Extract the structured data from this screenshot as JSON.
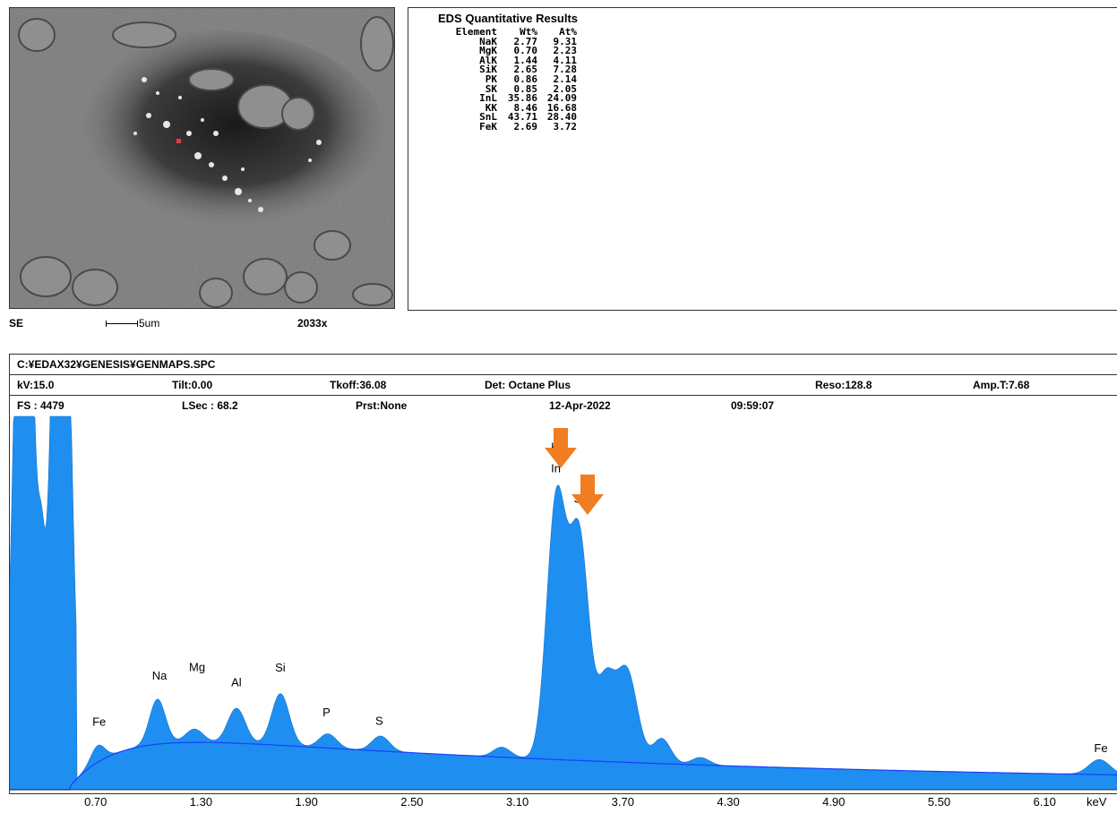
{
  "image_caption": {
    "mode": "SE",
    "scale_label": "5um",
    "magnification": "2033x"
  },
  "results": {
    "title": "EDS Quantitative Results",
    "headers": [
      "Element",
      "Wt%",
      "At%"
    ],
    "rows": [
      [
        "NaK",
        "2.77",
        "9.31"
      ],
      [
        "MgK",
        "0.70",
        "2.23"
      ],
      [
        "AlK",
        "1.44",
        "4.11"
      ],
      [
        "SiK",
        "2.65",
        "7.28"
      ],
      [
        "PK",
        "0.86",
        "2.14"
      ],
      [
        "SK",
        "0.85",
        "2.05"
      ],
      [
        "InL",
        "35.86",
        "24.09"
      ],
      [
        "KK",
        "8.46",
        "16.68"
      ],
      [
        "SnL",
        "43.71",
        "28.40"
      ],
      [
        "FeK",
        "2.69",
        "3.72"
      ]
    ]
  },
  "spectrum_header": {
    "file": "C:¥EDAX32¥GENESIS¥GENMAPS.SPC",
    "kv": "kV:15.0",
    "tilt": "Tilt:0.00",
    "tkoff": "Tkoff:36.08",
    "det": "Det: Octane Plus",
    "reso": "Reso:128.8",
    "amp": "Amp.T:7.68",
    "fs": "FS : 4479",
    "lsec": "LSec : 68.2",
    "prst": "Prst:None",
    "date": "12-Apr-2022",
    "time": "09:59:07"
  },
  "chart_data": {
    "type": "area",
    "xlim": [
      0.2,
      6.5
    ],
    "ylim": [
      0,
      4479
    ],
    "x_ticks": [
      "0.70",
      "1.30",
      "1.90",
      "2.50",
      "3.10",
      "3.70",
      "4.30",
      "4.90",
      "5.50",
      "6.10"
    ],
    "x_unit": "keV",
    "fill_color": "#1e8ff0",
    "background_line_color": "#1a3cff",
    "arrow_color": "#f07d22",
    "peaks": [
      {
        "label": "Fe",
        "x": 0.7,
        "y": 620
      },
      {
        "label": "Na",
        "x": 1.04,
        "y": 1170
      },
      {
        "label": "Mg",
        "x": 1.25,
        "y": 930
      },
      {
        "label": "Al",
        "x": 1.49,
        "y": 1090
      },
      {
        "label": "Si",
        "x": 1.74,
        "y": 1270
      },
      {
        "label": "P",
        "x": 2.01,
        "y": 730
      },
      {
        "label": "S",
        "x": 2.31,
        "y": 630
      },
      {
        "label": "K",
        "x": 3.31,
        "y": 3700,
        "arrow": true
      },
      {
        "label": "In",
        "x": 3.31,
        "y": 3700
      },
      {
        "label": "Sn",
        "x": 3.44,
        "y": 3380,
        "arrow": true
      },
      {
        "label": "Fe",
        "x": 6.4,
        "y": 300
      }
    ]
  }
}
